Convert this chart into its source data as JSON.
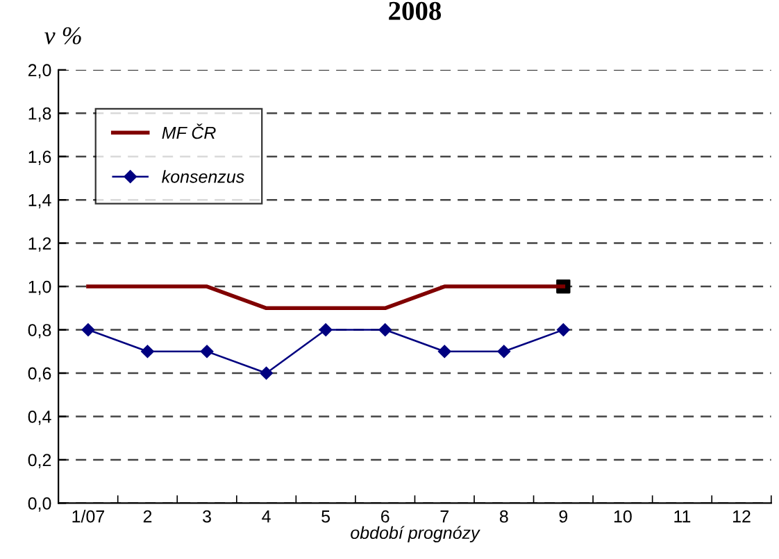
{
  "chart_data": {
    "type": "line",
    "title": "2008",
    "ylabel": "v %",
    "xlabel": "období prognózy",
    "categories": [
      "1/07",
      "2",
      "3",
      "4",
      "5",
      "6",
      "7",
      "8",
      "9",
      "10",
      "11",
      "12"
    ],
    "series": [
      {
        "name": "MF ČR",
        "color": "#800000",
        "marker": "none",
        "values": [
          1.0,
          1.0,
          1.0,
          0.9,
          0.9,
          0.9,
          1.0,
          1.0,
          1.0,
          null,
          null,
          null
        ]
      },
      {
        "name": "konsenzus",
        "color": "#000080",
        "marker": "diamond",
        "values": [
          0.8,
          0.7,
          0.7,
          0.6,
          0.8,
          0.8,
          0.7,
          0.7,
          0.8,
          null,
          null,
          null
        ]
      },
      {
        "type": "scatter",
        "color": "#000000",
        "marker": "square",
        "x": [
          "9"
        ],
        "values": [
          1.0
        ]
      }
    ],
    "ylim": [
      0,
      2
    ],
    "yticks": [
      {
        "value": 0,
        "label": "0,0"
      },
      {
        "value": 0.2,
        "label": "0,2"
      },
      {
        "value": 0.4,
        "label": "0,4"
      },
      {
        "value": 0.6,
        "label": "0,6"
      },
      {
        "value": 0.8,
        "label": "0,8"
      },
      {
        "value": 1.0,
        "label": "1,0"
      },
      {
        "value": 1.2,
        "label": "1,2"
      },
      {
        "value": 1.4,
        "label": "1,4"
      },
      {
        "value": 1.6,
        "label": "1,6"
      },
      {
        "value": 1.8,
        "label": "1,8"
      },
      {
        "value": 2.0,
        "label": "2,0"
      }
    ],
    "grid": "y",
    "line_style": "solid",
    "legend": "top left"
  }
}
